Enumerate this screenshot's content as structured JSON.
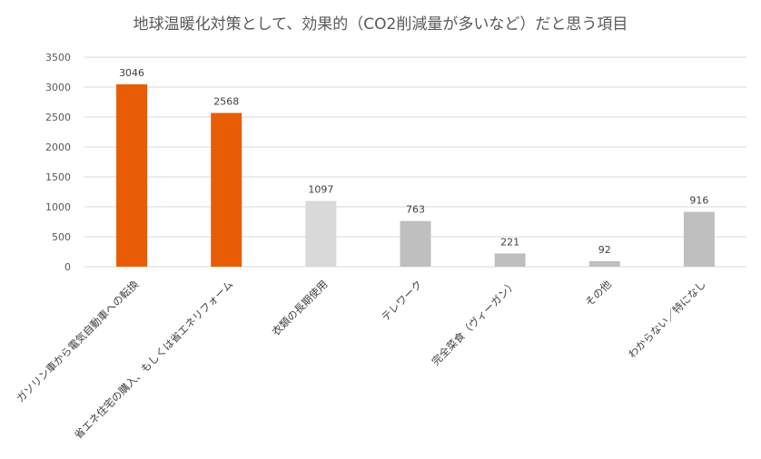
{
  "chart_data": {
    "type": "bar",
    "title": "地球温暖化対策として、効果的（CO2削減量が多いなど）だと思う項目",
    "categories": [
      "ガソリン車から電気自動車への転換",
      "省エネ住宅の購入、もしくは省エネリフォーム",
      "衣類の長期使用",
      "テレワーク",
      "完全菜食（ヴィーガン）",
      "その他",
      "わからない／特になし"
    ],
    "values": [
      3046,
      2568,
      1097,
      763,
      221,
      92,
      916
    ],
    "bar_colors": [
      "#e85d04",
      "#e85d04",
      "#d9d9d9",
      "#bfbfbf",
      "#bfbfbf",
      "#bfbfbf",
      "#bfbfbf"
    ],
    "ylim": [
      0,
      3500
    ],
    "yticks": [
      0,
      500,
      1000,
      1500,
      2000,
      2500,
      3000,
      3500
    ],
    "grid": true,
    "legend": "none"
  }
}
